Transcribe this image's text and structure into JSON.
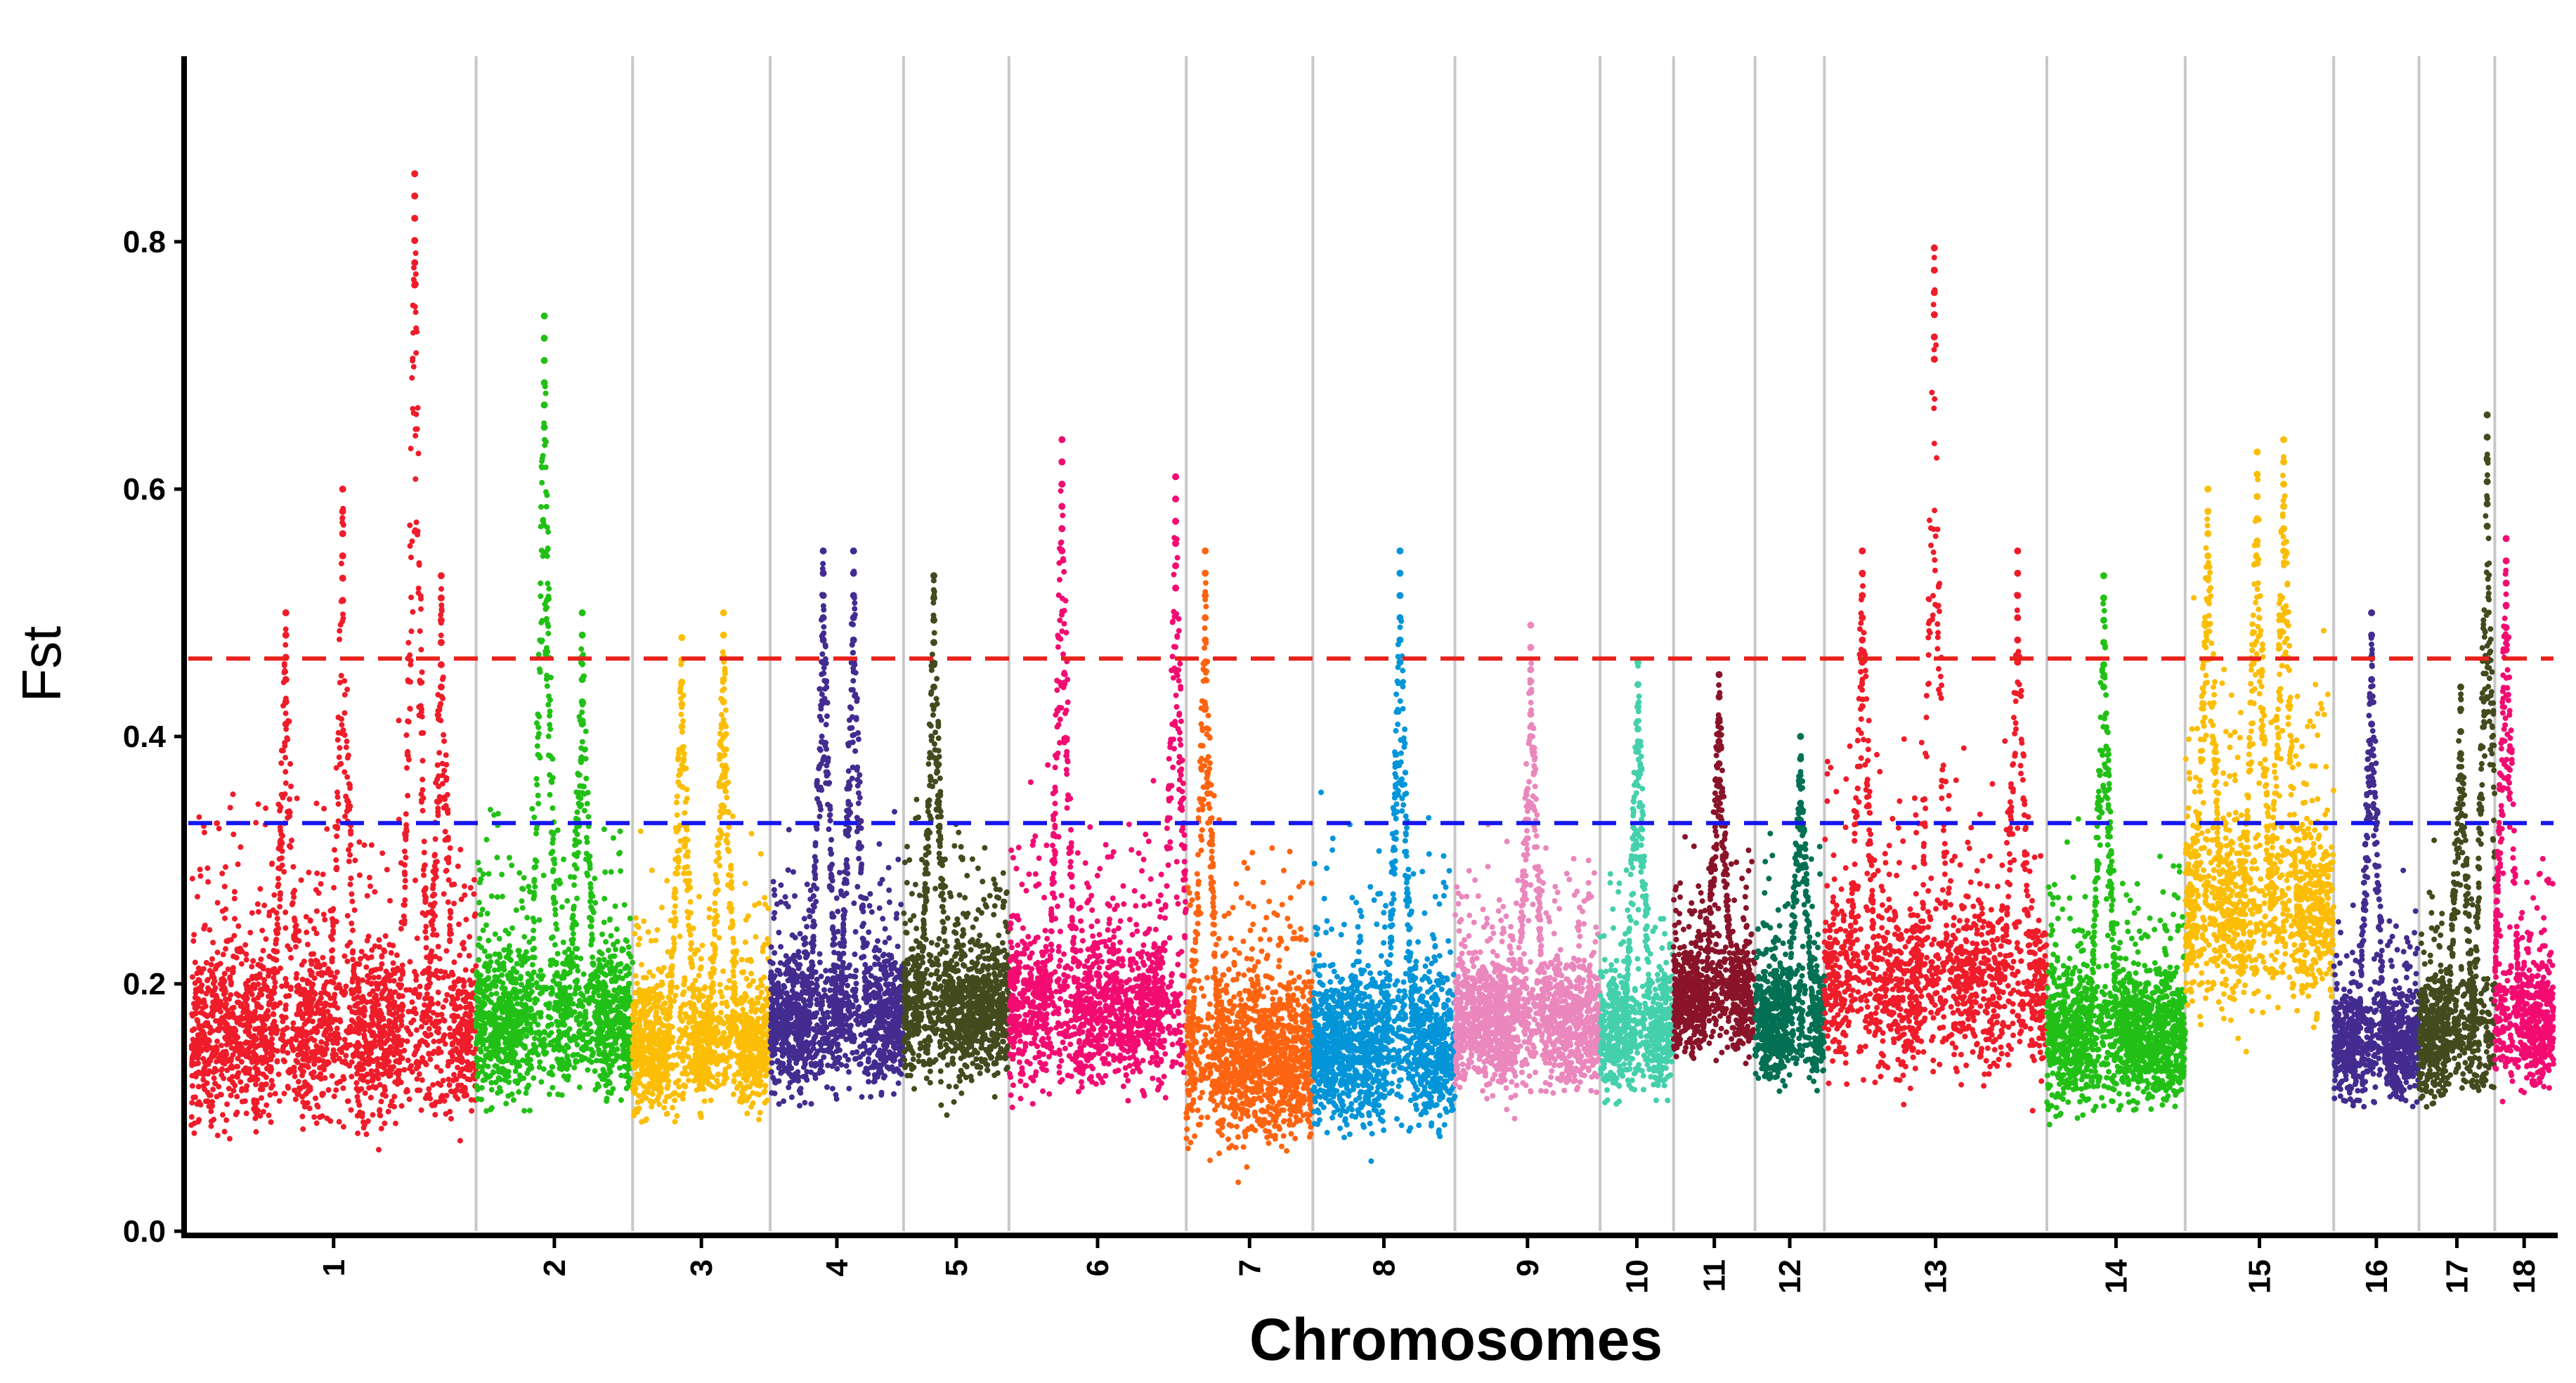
{
  "chart_data": {
    "type": "scatter",
    "subtype": "manhattan",
    "title": "",
    "xlabel": "Chromosomes",
    "ylabel": "Fst",
    "ylim": [
      0.0,
      0.95
    ],
    "y_ticks": [
      0.0,
      0.2,
      0.4,
      0.6,
      0.8
    ],
    "y_tick_labels": [
      "0.0",
      "0.2",
      "0.4",
      "0.6",
      "0.8"
    ],
    "thresholds": [
      {
        "name": "red-threshold",
        "value": 0.463,
        "color": "#e8221c",
        "style": "dashed"
      },
      {
        "name": "blue-threshold",
        "value": 0.33,
        "color": "#1616ee",
        "style": "dashed"
      }
    ],
    "chromosomes": [
      {
        "label": "1",
        "span": [
          0.0,
          7.52
        ],
        "color": "#ef1c2a",
        "base": 0.16,
        "spread": 0.15,
        "peaks": [
          [
            2.5,
            0.5
          ],
          [
            4.0,
            0.6
          ],
          [
            5.9,
            0.855
          ],
          [
            6.6,
            0.53
          ]
        ]
      },
      {
        "label": "2",
        "span": [
          7.52,
          11.65
        ],
        "color": "#22c016",
        "base": 0.17,
        "spread": 0.13,
        "peaks": [
          [
            1.8,
            0.74
          ],
          [
            2.8,
            0.5
          ]
        ]
      },
      {
        "label": "3",
        "span": [
          11.65,
          15.28
        ],
        "color": "#fbbd06",
        "base": 0.15,
        "spread": 0.11,
        "peaks": [
          [
            1.3,
            0.48
          ],
          [
            2.4,
            0.5
          ]
        ]
      },
      {
        "label": "4",
        "span": [
          15.28,
          18.8
        ],
        "color": "#432c8f",
        "base": 0.17,
        "spread": 0.12,
        "peaks": [
          [
            1.4,
            0.55
          ],
          [
            2.2,
            0.55
          ]
        ]
      },
      {
        "label": "5",
        "span": [
          18.8,
          21.58
        ],
        "color": "#434a1e",
        "base": 0.18,
        "spread": 0.12,
        "peaks": [
          [
            0.8,
            0.53
          ]
        ]
      },
      {
        "label": "6",
        "span": [
          21.58,
          26.26
        ],
        "color": "#f20c72",
        "base": 0.18,
        "spread": 0.13,
        "peaks": [
          [
            1.4,
            0.64
          ],
          [
            4.4,
            0.61
          ]
        ]
      },
      {
        "label": "7",
        "span": [
          26.26,
          29.6
        ],
        "color": "#fd6411",
        "base": 0.14,
        "spread": 0.14,
        "peaks": [
          [
            0.5,
            0.55
          ]
        ]
      },
      {
        "label": "8",
        "span": [
          29.6,
          33.35
        ],
        "color": "#0495d8",
        "base": 0.15,
        "spread": 0.13,
        "peaks": [
          [
            2.3,
            0.55
          ]
        ]
      },
      {
        "label": "9",
        "span": [
          33.35,
          37.18
        ],
        "color": "#ea87bd",
        "base": 0.17,
        "spread": 0.11,
        "peaks": [
          [
            2.0,
            0.49
          ]
        ]
      },
      {
        "label": "10",
        "span": [
          37.18,
          39.12
        ],
        "color": "#45d0ac",
        "base": 0.16,
        "spread": 0.1,
        "peaks": [
          [
            1.0,
            0.46
          ]
        ]
      },
      {
        "label": "11",
        "span": [
          39.12,
          41.27
        ],
        "color": "#891429",
        "base": 0.19,
        "spread": 0.1,
        "peaks": [
          [
            1.2,
            0.45
          ]
        ]
      },
      {
        "label": "12",
        "span": [
          41.27,
          43.1
        ],
        "color": "#037054",
        "base": 0.17,
        "spread": 0.1,
        "peaks": [
          [
            1.2,
            0.4
          ]
        ]
      },
      {
        "label": "13",
        "span": [
          43.1,
          48.97
        ],
        "color": "#ef1c2a",
        "base": 0.2,
        "spread": 0.15,
        "peaks": [
          [
            1.0,
            0.55
          ],
          [
            2.9,
            0.795
          ],
          [
            5.1,
            0.55
          ]
        ]
      },
      {
        "label": "14",
        "span": [
          48.97,
          52.62
        ],
        "color": "#22c016",
        "base": 0.16,
        "spread": 0.12,
        "peaks": [
          [
            1.5,
            0.53
          ]
        ]
      },
      {
        "label": "15",
        "span": [
          52.62,
          56.54
        ],
        "color": "#fbbd06",
        "base": 0.26,
        "spread": 0.16,
        "peaks": [
          [
            0.6,
            0.6
          ],
          [
            1.9,
            0.63
          ],
          [
            2.6,
            0.64
          ]
        ]
      },
      {
        "label": "16",
        "span": [
          56.54,
          58.79
        ],
        "color": "#432c8f",
        "base": 0.15,
        "spread": 0.1,
        "peaks": [
          [
            1.0,
            0.5
          ]
        ]
      },
      {
        "label": "17",
        "span": [
          58.79,
          60.79
        ],
        "color": "#434a1e",
        "base": 0.16,
        "spread": 0.11,
        "peaks": [
          [
            1.1,
            0.44
          ],
          [
            1.8,
            0.66
          ]
        ]
      },
      {
        "label": "18",
        "span": [
          60.79,
          62.34
        ],
        "color": "#f20c72",
        "base": 0.17,
        "spread": 0.11,
        "peaks": [
          [
            0.3,
            0.56
          ]
        ]
      }
    ]
  }
}
